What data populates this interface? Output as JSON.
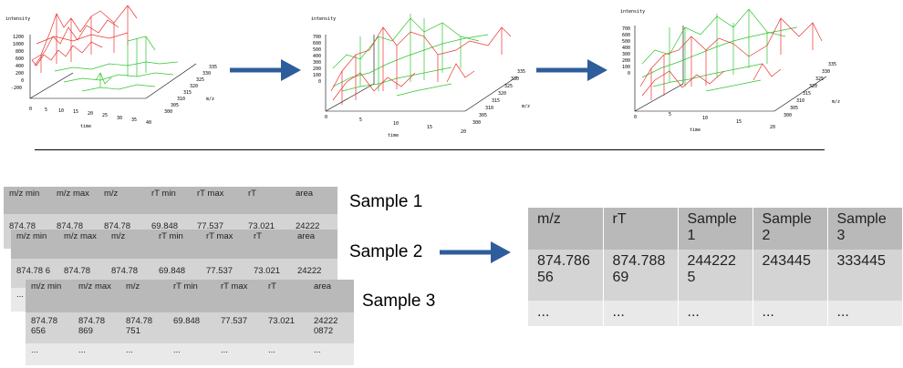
{
  "plots": [
    {
      "ylabel": "intensity",
      "xlabel": "time",
      "zlabel": "m/z",
      "yticks": [
        "1200",
        "1000",
        "800",
        "600",
        "400",
        "200",
        "0",
        "-200"
      ],
      "xticks": [
        "0",
        "5",
        "10",
        "15",
        "20",
        "25",
        "30",
        "35",
        "40"
      ],
      "zticks": [
        "335",
        "330",
        "325",
        "320",
        "315",
        "310",
        "305",
        "300"
      ]
    },
    {
      "ylabel": "intensity",
      "xlabel": "time",
      "zlabel": "m/z",
      "yticks": [
        "700",
        "600",
        "500",
        "400",
        "300",
        "200",
        "100",
        "0"
      ],
      "xticks": [
        "0",
        "5",
        "10",
        "15",
        "20"
      ],
      "zticks": [
        "335",
        "330",
        "325",
        "320",
        "315",
        "310",
        "305",
        "300"
      ]
    },
    {
      "ylabel": "intensity",
      "xlabel": "time",
      "zlabel": "m/z",
      "yticks": [
        "700",
        "600",
        "500",
        "400",
        "300",
        "200",
        "100",
        "0"
      ],
      "xticks": [
        "0",
        "5",
        "10",
        "15",
        "20"
      ],
      "zticks": [
        "335",
        "330",
        "325",
        "320",
        "315",
        "310",
        "305",
        "300"
      ]
    }
  ],
  "colors": {
    "arrow": "#2e5d9b",
    "series_a": "#e8332f",
    "series_b": "#2ec42e"
  },
  "samples": [
    {
      "label": "Sample 1",
      "headers": [
        "m/z min",
        "m/z max",
        "m/z",
        "rT min",
        "rT max",
        "rT",
        "area"
      ],
      "row": [
        "874.78",
        "874.78",
        "874.78",
        "69.848",
        "77.537",
        "73.021",
        "24222"
      ]
    },
    {
      "label": "Sample 2",
      "headers": [
        "m/z min",
        "m/z max",
        "m/z",
        "rT min",
        "rT max",
        "rT",
        "area"
      ],
      "row": [
        "874.78 6",
        "874.78",
        "874.78",
        "69.848",
        "77.537",
        "73.021",
        "24222"
      ],
      "row2": [
        "..."
      ]
    },
    {
      "label": "Sample 3",
      "headers": [
        "m/z min",
        "m/z max",
        "m/z",
        "rT min",
        "rT max",
        "rT",
        "area"
      ],
      "row": [
        "874.78 656",
        "874.78 869",
        "874.78 751",
        "69.848",
        "77.537",
        "73.021",
        "24222 0872"
      ],
      "row2": [
        "...",
        "...",
        "...",
        "...",
        "...",
        "...",
        "..."
      ]
    }
  ],
  "result": {
    "headers": [
      "m/z",
      "rT",
      "Sample 1",
      "Sample 2",
      "Sample 3"
    ],
    "row": [
      "874.786 56",
      "874.788 69",
      "244222 5",
      "243445",
      "333445"
    ],
    "row2": [
      "...",
      "...",
      "...",
      "...",
      "..."
    ]
  }
}
